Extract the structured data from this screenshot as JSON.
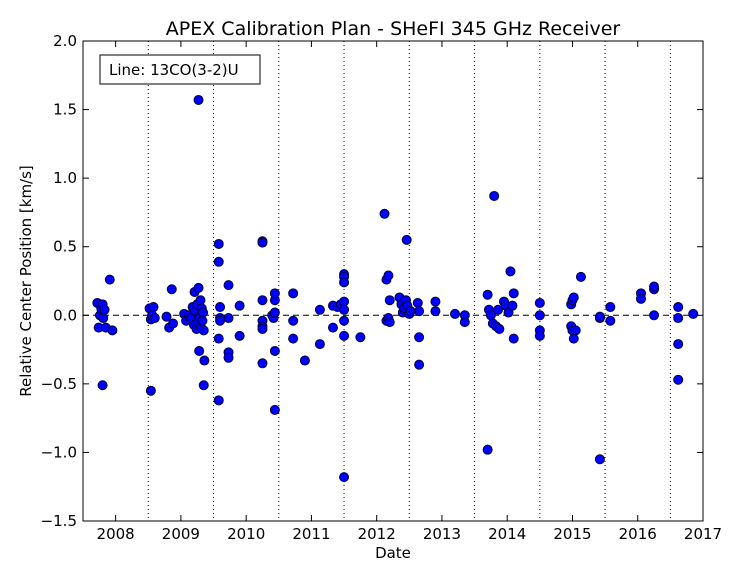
{
  "chart_data": {
    "type": "scatter",
    "title": "APEX Calibration Plan - SHeFI 345 GHz Receiver",
    "xlabel": "Date",
    "ylabel": "Relative Center Position [km/s]",
    "legend_text": "Line: 13CO(3-2)U",
    "legend_position": "top-left",
    "xlim": [
      2007.5,
      2017.0
    ],
    "ylim": [
      -1.5,
      2.0
    ],
    "x_ticks": [
      2008,
      2009,
      2010,
      2011,
      2012,
      2013,
      2014,
      2015,
      2016,
      2017
    ],
    "x_tick_labels": [
      "2008",
      "2009",
      "2010",
      "2011",
      "2012",
      "2013",
      "2014",
      "2015",
      "2016",
      "2017"
    ],
    "y_ticks": [
      -1.5,
      -1.0,
      -0.5,
      0.0,
      0.5,
      1.0,
      1.5,
      2.0
    ],
    "y_tick_labels": [
      "−1.5",
      "−1.0",
      "−0.5",
      "0.0",
      "0.5",
      "1.0",
      "1.5",
      "2.0"
    ],
    "vlines": [
      2008.5,
      2009.5,
      2010.5,
      2011.5,
      2012.5,
      2013.5,
      2014.5,
      2015.5,
      2016.5
    ],
    "reference_y": 0.0,
    "marker_color": "#0000ff",
    "marker_edge": "#00003a",
    "points": [
      [
        2007.72,
        0.09
      ],
      [
        2007.74,
        -0.09
      ],
      [
        2007.76,
        0.0
      ],
      [
        2007.78,
        0.05
      ],
      [
        2007.8,
        0.08
      ],
      [
        2007.81,
        -0.02
      ],
      [
        2007.83,
        0.04
      ],
      [
        2007.85,
        -0.09
      ],
      [
        2007.8,
        -0.51
      ],
      [
        2007.91,
        0.26
      ],
      [
        2007.95,
        -0.11
      ],
      [
        2008.52,
        0.05
      ],
      [
        2008.54,
        -0.03
      ],
      [
        2008.56,
        0.0
      ],
      [
        2008.58,
        0.06
      ],
      [
        2008.6,
        -0.02
      ],
      [
        2008.54,
        -0.55
      ],
      [
        2008.78,
        -0.01
      ],
      [
        2008.82,
        -0.09
      ],
      [
        2008.86,
        0.19
      ],
      [
        2008.88,
        -0.06
      ],
      [
        2009.05,
        0.01
      ],
      [
        2009.08,
        -0.04
      ],
      [
        2009.12,
        0.0
      ],
      [
        2009.15,
        -0.02
      ],
      [
        2009.18,
        0.06
      ],
      [
        2009.2,
        -0.07
      ],
      [
        2009.21,
        0.17
      ],
      [
        2009.22,
        0.03
      ],
      [
        2009.24,
        -0.1
      ],
      [
        2009.25,
        0.08
      ],
      [
        2009.26,
        -0.05
      ],
      [
        2009.27,
        0.2
      ],
      [
        2009.28,
        0.0
      ],
      [
        2009.29,
        -0.02
      ],
      [
        2009.3,
        0.11
      ],
      [
        2009.31,
        -0.09
      ],
      [
        2009.32,
        0.05
      ],
      [
        2009.33,
        -0.04
      ],
      [
        2009.34,
        0.02
      ],
      [
        2009.35,
        -0.11
      ],
      [
        2009.27,
        1.57
      ],
      [
        2009.28,
        -0.26
      ],
      [
        2009.36,
        -0.33
      ],
      [
        2009.35,
        -0.51
      ],
      [
        2009.58,
        0.52
      ],
      [
        2009.58,
        0.39
      ],
      [
        2009.6,
        0.06
      ],
      [
        2009.6,
        -0.02
      ],
      [
        2009.6,
        -0.04
      ],
      [
        2009.58,
        -0.17
      ],
      [
        2009.58,
        -0.62
      ],
      [
        2009.73,
        0.22
      ],
      [
        2009.73,
        -0.02
      ],
      [
        2009.73,
        -0.27
      ],
      [
        2009.73,
        -0.31
      ],
      [
        2009.9,
        0.07
      ],
      [
        2009.9,
        -0.15
      ],
      [
        2010.25,
        0.54
      ],
      [
        2010.25,
        0.53
      ],
      [
        2010.25,
        0.11
      ],
      [
        2010.25,
        -0.04
      ],
      [
        2010.25,
        -0.08
      ],
      [
        2010.25,
        -0.1
      ],
      [
        2010.25,
        -0.35
      ],
      [
        2010.4,
        0.0
      ],
      [
        2010.42,
        -0.02
      ],
      [
        2010.44,
        0.02
      ],
      [
        2010.44,
        0.11
      ],
      [
        2010.44,
        0.16
      ],
      [
        2010.44,
        -0.26
      ],
      [
        2010.44,
        -0.69
      ],
      [
        2010.72,
        0.16
      ],
      [
        2010.72,
        -0.04
      ],
      [
        2010.72,
        -0.17
      ],
      [
        2010.9,
        -0.33
      ],
      [
        2011.13,
        0.04
      ],
      [
        2011.13,
        -0.21
      ],
      [
        2011.33,
        0.07
      ],
      [
        2011.33,
        -0.09
      ],
      [
        2011.4,
        0.06
      ],
      [
        2011.45,
        0.08
      ],
      [
        2011.5,
        0.3
      ],
      [
        2011.5,
        0.28
      ],
      [
        2011.5,
        0.24
      ],
      [
        2011.5,
        0.1
      ],
      [
        2011.5,
        0.04
      ],
      [
        2011.5,
        -0.04
      ],
      [
        2011.5,
        -0.15
      ],
      [
        2011.5,
        -1.18
      ],
      [
        2011.75,
        -0.16
      ],
      [
        2012.12,
        0.74
      ],
      [
        2012.15,
        0.26
      ],
      [
        2012.18,
        0.29
      ],
      [
        2012.2,
        0.11
      ],
      [
        2012.15,
        -0.04
      ],
      [
        2012.18,
        -0.02
      ],
      [
        2012.2,
        -0.05
      ],
      [
        2012.35,
        0.13
      ],
      [
        2012.38,
        0.08
      ],
      [
        2012.4,
        0.02
      ],
      [
        2012.42,
        0.05
      ],
      [
        2012.45,
        0.11
      ],
      [
        2012.47,
        0.07
      ],
      [
        2012.5,
        0.01
      ],
      [
        2012.52,
        0.03
      ],
      [
        2012.46,
        0.55
      ],
      [
        2012.63,
        0.09
      ],
      [
        2012.65,
        0.03
      ],
      [
        2012.65,
        -0.16
      ],
      [
        2012.65,
        -0.36
      ],
      [
        2012.9,
        0.1
      ],
      [
        2012.9,
        0.03
      ],
      [
        2013.2,
        0.01
      ],
      [
        2013.35,
        0.0
      ],
      [
        2013.35,
        -0.05
      ],
      [
        2013.7,
        0.15
      ],
      [
        2013.72,
        0.04
      ],
      [
        2013.75,
        0.0
      ],
      [
        2013.78,
        -0.06
      ],
      [
        2013.8,
        0.87
      ],
      [
        2013.83,
        -0.08
      ],
      [
        2013.86,
        0.04
      ],
      [
        2013.88,
        -0.1
      ],
      [
        2013.7,
        -0.98
      ],
      [
        2013.95,
        0.1
      ],
      [
        2013.98,
        0.07
      ],
      [
        2014.02,
        0.02
      ],
      [
        2014.05,
        0.32
      ],
      [
        2014.08,
        0.07
      ],
      [
        2014.1,
        0.16
      ],
      [
        2014.1,
        -0.17
      ],
      [
        2014.5,
        0.09
      ],
      [
        2014.5,
        0.0
      ],
      [
        2014.5,
        -0.11
      ],
      [
        2014.5,
        -0.15
      ],
      [
        2014.98,
        0.08
      ],
      [
        2015.0,
        0.11
      ],
      [
        2015.02,
        0.13
      ],
      [
        2014.98,
        -0.08
      ],
      [
        2015.0,
        -0.11
      ],
      [
        2015.02,
        -0.17
      ],
      [
        2015.05,
        -0.11
      ],
      [
        2015.13,
        0.28
      ],
      [
        2015.42,
        -0.02
      ],
      [
        2015.42,
        -0.01
      ],
      [
        2015.42,
        -1.05
      ],
      [
        2015.58,
        0.06
      ],
      [
        2015.58,
        -0.04
      ],
      [
        2016.05,
        0.16
      ],
      [
        2016.05,
        0.12
      ],
      [
        2016.25,
        0.19
      ],
      [
        2016.25,
        0.21
      ],
      [
        2016.25,
        0.0
      ],
      [
        2016.62,
        0.06
      ],
      [
        2016.62,
        -0.02
      ],
      [
        2016.62,
        -0.21
      ],
      [
        2016.62,
        -0.47
      ],
      [
        2016.85,
        0.01
      ]
    ]
  }
}
